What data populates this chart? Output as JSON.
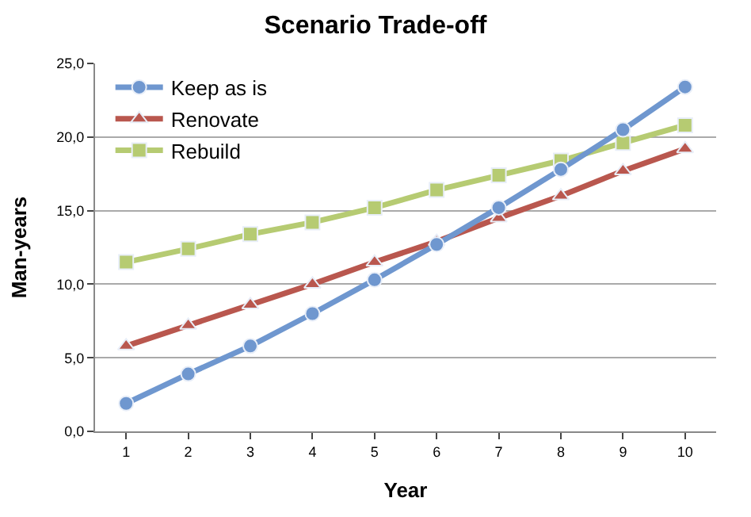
{
  "chart_data": {
    "type": "line",
    "title": "Scenario Trade-off",
    "xlabel": "Year",
    "ylabel": "Man-years",
    "categories": [
      "1",
      "2",
      "3",
      "4",
      "5",
      "6",
      "7",
      "8",
      "9",
      "10"
    ],
    "series": [
      {
        "name": "Keep as is",
        "color": "#6f97cf",
        "marker": "circle",
        "values": [
          1.9,
          3.9,
          5.8,
          8.0,
          10.3,
          12.7,
          15.2,
          17.8,
          20.5,
          23.4
        ]
      },
      {
        "name": "Renovate",
        "color": "#b9574e",
        "marker": "triangle",
        "values": [
          5.8,
          7.2,
          8.6,
          10.0,
          11.5,
          12.9,
          14.5,
          16.0,
          17.7,
          19.2
        ]
      },
      {
        "name": "Rebuild",
        "color": "#b6cb72",
        "marker": "square",
        "values": [
          11.5,
          12.4,
          13.4,
          14.2,
          15.2,
          16.4,
          17.4,
          18.4,
          19.6,
          20.8
        ]
      }
    ],
    "ylim": [
      0,
      25
    ],
    "yticks": [
      {
        "value": 0,
        "label": "0,0"
      },
      {
        "value": 5,
        "label": "5,0"
      },
      {
        "value": 10,
        "label": "10,0"
      },
      {
        "value": 15,
        "label": "15,0"
      },
      {
        "value": 20,
        "label": "20,0"
      },
      {
        "value": 25,
        "label": "25,0"
      }
    ],
    "grid": "y",
    "legend": "top left",
    "line_style": "solid"
  }
}
